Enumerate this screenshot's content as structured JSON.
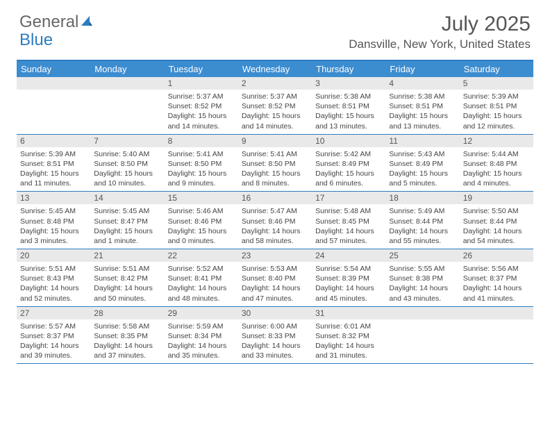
{
  "logo": {
    "text_general": "General",
    "text_blue": "Blue"
  },
  "title": "July 2025",
  "location": "Dansville, New York, United States",
  "day_headers": [
    "Sunday",
    "Monday",
    "Tuesday",
    "Wednesday",
    "Thursday",
    "Friday",
    "Saturday"
  ],
  "colors": {
    "header_bg": "#3c8cd0",
    "header_text": "#ffffff",
    "border": "#2e7cc0",
    "daynum_bg": "#e9e9e9",
    "text": "#444444"
  },
  "weeks": [
    [
      {
        "num": "",
        "sunrise": "",
        "sunset": "",
        "daylight": ""
      },
      {
        "num": "",
        "sunrise": "",
        "sunset": "",
        "daylight": ""
      },
      {
        "num": "1",
        "sunrise": "Sunrise: 5:37 AM",
        "sunset": "Sunset: 8:52 PM",
        "daylight": "Daylight: 15 hours and 14 minutes."
      },
      {
        "num": "2",
        "sunrise": "Sunrise: 5:37 AM",
        "sunset": "Sunset: 8:52 PM",
        "daylight": "Daylight: 15 hours and 14 minutes."
      },
      {
        "num": "3",
        "sunrise": "Sunrise: 5:38 AM",
        "sunset": "Sunset: 8:51 PM",
        "daylight": "Daylight: 15 hours and 13 minutes."
      },
      {
        "num": "4",
        "sunrise": "Sunrise: 5:38 AM",
        "sunset": "Sunset: 8:51 PM",
        "daylight": "Daylight: 15 hours and 13 minutes."
      },
      {
        "num": "5",
        "sunrise": "Sunrise: 5:39 AM",
        "sunset": "Sunset: 8:51 PM",
        "daylight": "Daylight: 15 hours and 12 minutes."
      }
    ],
    [
      {
        "num": "6",
        "sunrise": "Sunrise: 5:39 AM",
        "sunset": "Sunset: 8:51 PM",
        "daylight": "Daylight: 15 hours and 11 minutes."
      },
      {
        "num": "7",
        "sunrise": "Sunrise: 5:40 AM",
        "sunset": "Sunset: 8:50 PM",
        "daylight": "Daylight: 15 hours and 10 minutes."
      },
      {
        "num": "8",
        "sunrise": "Sunrise: 5:41 AM",
        "sunset": "Sunset: 8:50 PM",
        "daylight": "Daylight: 15 hours and 9 minutes."
      },
      {
        "num": "9",
        "sunrise": "Sunrise: 5:41 AM",
        "sunset": "Sunset: 8:50 PM",
        "daylight": "Daylight: 15 hours and 8 minutes."
      },
      {
        "num": "10",
        "sunrise": "Sunrise: 5:42 AM",
        "sunset": "Sunset: 8:49 PM",
        "daylight": "Daylight: 15 hours and 6 minutes."
      },
      {
        "num": "11",
        "sunrise": "Sunrise: 5:43 AM",
        "sunset": "Sunset: 8:49 PM",
        "daylight": "Daylight: 15 hours and 5 minutes."
      },
      {
        "num": "12",
        "sunrise": "Sunrise: 5:44 AM",
        "sunset": "Sunset: 8:48 PM",
        "daylight": "Daylight: 15 hours and 4 minutes."
      }
    ],
    [
      {
        "num": "13",
        "sunrise": "Sunrise: 5:45 AM",
        "sunset": "Sunset: 8:48 PM",
        "daylight": "Daylight: 15 hours and 3 minutes."
      },
      {
        "num": "14",
        "sunrise": "Sunrise: 5:45 AM",
        "sunset": "Sunset: 8:47 PM",
        "daylight": "Daylight: 15 hours and 1 minute."
      },
      {
        "num": "15",
        "sunrise": "Sunrise: 5:46 AM",
        "sunset": "Sunset: 8:46 PM",
        "daylight": "Daylight: 15 hours and 0 minutes."
      },
      {
        "num": "16",
        "sunrise": "Sunrise: 5:47 AM",
        "sunset": "Sunset: 8:46 PM",
        "daylight": "Daylight: 14 hours and 58 minutes."
      },
      {
        "num": "17",
        "sunrise": "Sunrise: 5:48 AM",
        "sunset": "Sunset: 8:45 PM",
        "daylight": "Daylight: 14 hours and 57 minutes."
      },
      {
        "num": "18",
        "sunrise": "Sunrise: 5:49 AM",
        "sunset": "Sunset: 8:44 PM",
        "daylight": "Daylight: 14 hours and 55 minutes."
      },
      {
        "num": "19",
        "sunrise": "Sunrise: 5:50 AM",
        "sunset": "Sunset: 8:44 PM",
        "daylight": "Daylight: 14 hours and 54 minutes."
      }
    ],
    [
      {
        "num": "20",
        "sunrise": "Sunrise: 5:51 AM",
        "sunset": "Sunset: 8:43 PM",
        "daylight": "Daylight: 14 hours and 52 minutes."
      },
      {
        "num": "21",
        "sunrise": "Sunrise: 5:51 AM",
        "sunset": "Sunset: 8:42 PM",
        "daylight": "Daylight: 14 hours and 50 minutes."
      },
      {
        "num": "22",
        "sunrise": "Sunrise: 5:52 AM",
        "sunset": "Sunset: 8:41 PM",
        "daylight": "Daylight: 14 hours and 48 minutes."
      },
      {
        "num": "23",
        "sunrise": "Sunrise: 5:53 AM",
        "sunset": "Sunset: 8:40 PM",
        "daylight": "Daylight: 14 hours and 47 minutes."
      },
      {
        "num": "24",
        "sunrise": "Sunrise: 5:54 AM",
        "sunset": "Sunset: 8:39 PM",
        "daylight": "Daylight: 14 hours and 45 minutes."
      },
      {
        "num": "25",
        "sunrise": "Sunrise: 5:55 AM",
        "sunset": "Sunset: 8:38 PM",
        "daylight": "Daylight: 14 hours and 43 minutes."
      },
      {
        "num": "26",
        "sunrise": "Sunrise: 5:56 AM",
        "sunset": "Sunset: 8:37 PM",
        "daylight": "Daylight: 14 hours and 41 minutes."
      }
    ],
    [
      {
        "num": "27",
        "sunrise": "Sunrise: 5:57 AM",
        "sunset": "Sunset: 8:37 PM",
        "daylight": "Daylight: 14 hours and 39 minutes."
      },
      {
        "num": "28",
        "sunrise": "Sunrise: 5:58 AM",
        "sunset": "Sunset: 8:35 PM",
        "daylight": "Daylight: 14 hours and 37 minutes."
      },
      {
        "num": "29",
        "sunrise": "Sunrise: 5:59 AM",
        "sunset": "Sunset: 8:34 PM",
        "daylight": "Daylight: 14 hours and 35 minutes."
      },
      {
        "num": "30",
        "sunrise": "Sunrise: 6:00 AM",
        "sunset": "Sunset: 8:33 PM",
        "daylight": "Daylight: 14 hours and 33 minutes."
      },
      {
        "num": "31",
        "sunrise": "Sunrise: 6:01 AM",
        "sunset": "Sunset: 8:32 PM",
        "daylight": "Daylight: 14 hours and 31 minutes."
      },
      {
        "num": "",
        "sunrise": "",
        "sunset": "",
        "daylight": ""
      },
      {
        "num": "",
        "sunrise": "",
        "sunset": "",
        "daylight": ""
      }
    ]
  ]
}
